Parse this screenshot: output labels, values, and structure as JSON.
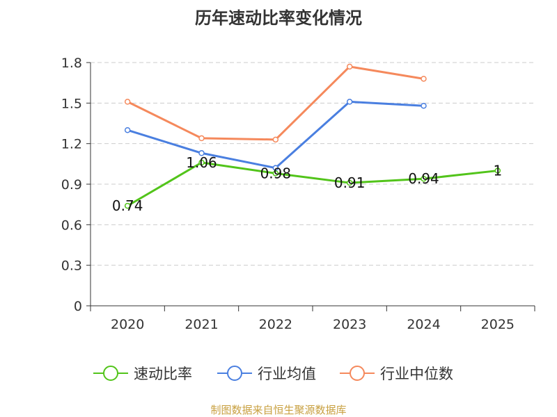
{
  "chart_data": {
    "type": "line",
    "title": "历年速动比率变化情况",
    "categories": [
      "2020",
      "2021",
      "2022",
      "2023",
      "2024",
      "2025"
    ],
    "y_ticks": [
      "0",
      "0.3",
      "0.6",
      "0.9",
      "1.2",
      "1.5",
      "1.8"
    ],
    "ylim": [
      0,
      1.8
    ],
    "grid": true,
    "legend_position": "bottom",
    "series": [
      {
        "name": "速动比率",
        "color": "#52c41a",
        "values": [
          0.74,
          1.06,
          0.98,
          0.91,
          0.94,
          1.0
        ],
        "labels": [
          "0.74",
          "1.06",
          "0.98",
          "0.91",
          "0.94",
          "1"
        ]
      },
      {
        "name": "行业均值",
        "color": "#4a7fe0",
        "values": [
          1.3,
          1.13,
          1.02,
          1.51,
          1.48,
          null
        ]
      },
      {
        "name": "行业中位数",
        "color": "#f5895c",
        "values": [
          1.51,
          1.24,
          1.23,
          1.77,
          1.68,
          null
        ]
      }
    ]
  },
  "source_text": "制图数据来自恒生聚源数据库"
}
